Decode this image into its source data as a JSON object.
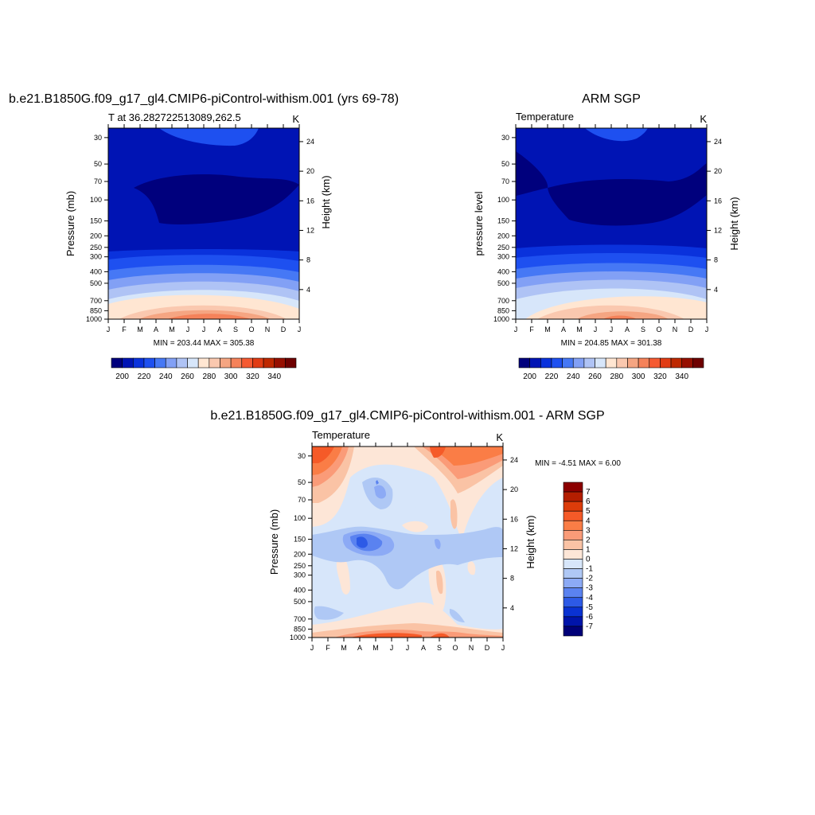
{
  "chart_data": [
    {
      "type": "heatmap",
      "title": "b.e21.B1850G.f09_g17_gl4.CMIP6-piControl-withism.001 (yrs 69-78)",
      "subtitle_left": "T at 36.282722513089,262.5",
      "subtitle_right": "K",
      "ylabel": "Pressure (mb)",
      "ylabel_right": "Height (km)",
      "x_ticks": [
        "J",
        "F",
        "M",
        "A",
        "M",
        "J",
        "J",
        "A",
        "S",
        "O",
        "N",
        "D",
        "J"
      ],
      "y_ticks": [
        30,
        50,
        70,
        100,
        150,
        200,
        250,
        300,
        400,
        500,
        700,
        850,
        1000
      ],
      "y_ticks_right": [
        24,
        20,
        16,
        12,
        8,
        4
      ],
      "ylim": [
        1000,
        25
      ],
      "stats": "MIN = 203.44 MAX = 305.38",
      "min": 203.44,
      "max": 305.38,
      "colorbar_labels": [
        "200",
        "220",
        "240",
        "260",
        "280",
        "300",
        "320",
        "340"
      ],
      "colorbar_levels": [
        190,
        200,
        210,
        220,
        230,
        240,
        250,
        260,
        270,
        280,
        290,
        300,
        310,
        320,
        330,
        340,
        350
      ],
      "colors": [
        "#00007d",
        "#0014b4",
        "#0a32dc",
        "#1e50f0",
        "#4678f5",
        "#82a0f5",
        "#afc3f5",
        "#d7e6fa",
        "#ffe6d2",
        "#fac8af",
        "#f5a582",
        "#f5825a",
        "#f55a32",
        "#e13c14",
        "#be2800",
        "#960f00",
        "#6e0000"
      ]
    },
    {
      "type": "heatmap",
      "title": "ARM SGP",
      "subtitle_left": "Temperature",
      "subtitle_right": "K",
      "ylabel": "pressure level",
      "ylabel_right": "Height (km)",
      "x_ticks": [
        "J",
        "F",
        "M",
        "A",
        "M",
        "J",
        "J",
        "A",
        "S",
        "O",
        "N",
        "D",
        "J"
      ],
      "y_ticks": [
        30,
        50,
        70,
        100,
        150,
        200,
        250,
        300,
        400,
        500,
        700,
        850,
        1000
      ],
      "y_ticks_right": [
        24,
        20,
        16,
        12,
        8,
        4
      ],
      "ylim": [
        1000,
        25
      ],
      "stats": "MIN = 204.85 MAX = 301.38",
      "min": 204.85,
      "max": 301.38,
      "colorbar_labels": [
        "200",
        "220",
        "240",
        "260",
        "280",
        "300",
        "320",
        "340"
      ]
    },
    {
      "type": "heatmap",
      "title": "b.e21.B1850G.f09_g17_gl4.CMIP6-piControl-withism.001 - ARM SGP",
      "subtitle_left": "Temperature",
      "subtitle_right": "K",
      "ylabel": "Pressure (mb)",
      "ylabel_right": "Height (km)",
      "x_ticks": [
        "J",
        "F",
        "M",
        "A",
        "M",
        "J",
        "J",
        "A",
        "S",
        "O",
        "N",
        "D",
        "J"
      ],
      "y_ticks": [
        30,
        50,
        70,
        100,
        150,
        200,
        250,
        300,
        400,
        500,
        700,
        850,
        1000
      ],
      "y_ticks_right": [
        24,
        20,
        16,
        12,
        8,
        4
      ],
      "ylim": [
        1000,
        25
      ],
      "stats": "MIN = -4.51 MAX = 6.00",
      "min": -4.51,
      "max": 6.0,
      "colorbar_labels": [
        "7",
        "6",
        "5",
        "4",
        "3",
        "2",
        "1",
        "0",
        "-1",
        "-2",
        "-3",
        "-4",
        "-5",
        "-6",
        "-7"
      ],
      "colorbar_levels": [
        7,
        6,
        5,
        4,
        3,
        2,
        1,
        0,
        -1,
        -2,
        -3,
        -4,
        -5,
        -6,
        -7
      ],
      "colors": [
        "#8c0000",
        "#b41e00",
        "#dc3c0a",
        "#f55a28",
        "#fa7d46",
        "#fa9b78",
        "#fac3a5",
        "#fde6d7",
        "#d7e6fa",
        "#afc8f5",
        "#8caaf5",
        "#5a82f0",
        "#2d5ae6",
        "#0a32d2",
        "#0014aa",
        "#000078"
      ]
    }
  ]
}
